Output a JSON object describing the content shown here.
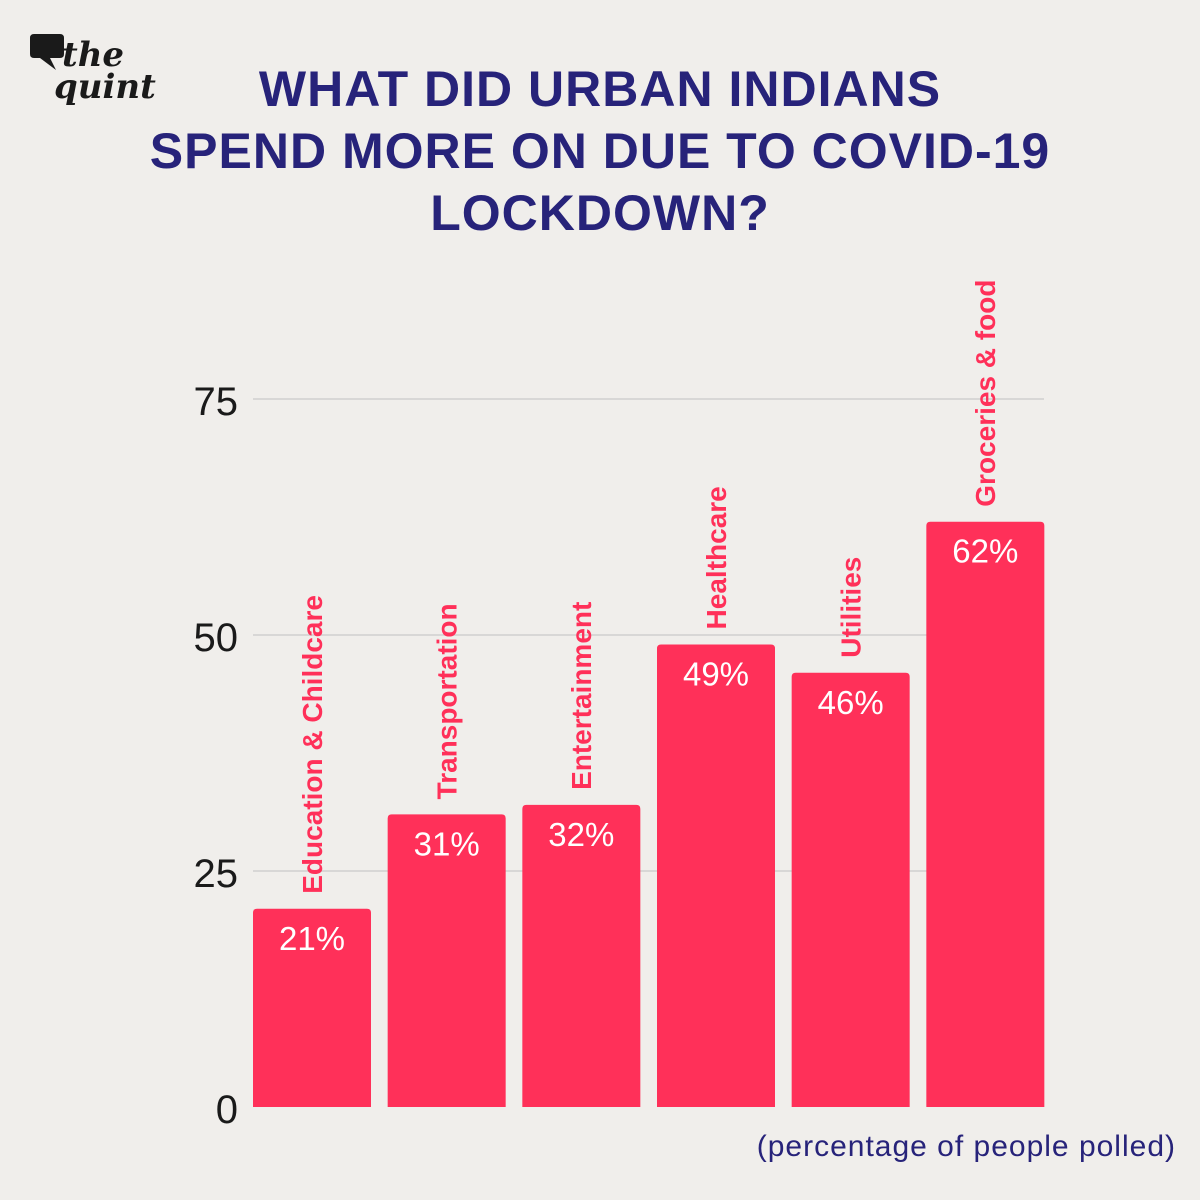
{
  "brand": {
    "line1": "the",
    "line2": "quint"
  },
  "title_lines": [
    "WHAT DID URBAN INDIANS",
    "SPEND MORE ON DUE TO COVID-19",
    "LOCKDOWN?"
  ],
  "caption": "(percentage of people polled)",
  "colors": {
    "bar": "#ff3059",
    "title": "#27237a",
    "grid": "#cfcfcf",
    "background": "#f0eeeb"
  },
  "chart_data": {
    "type": "bar",
    "categories": [
      "Education & Childcare",
      "Transportation",
      "Entertainment",
      "Healthcare",
      "Utilities",
      "Groceries & food"
    ],
    "values": [
      21,
      31,
      32,
      49,
      46,
      62
    ],
    "value_labels": [
      "21%",
      "31%",
      "32%",
      "49%",
      "46%",
      "62%"
    ],
    "y_ticks": [
      0,
      25,
      50,
      75
    ],
    "ylim": [
      0,
      75
    ],
    "grid": true,
    "category_label_orientation": "vertical"
  }
}
